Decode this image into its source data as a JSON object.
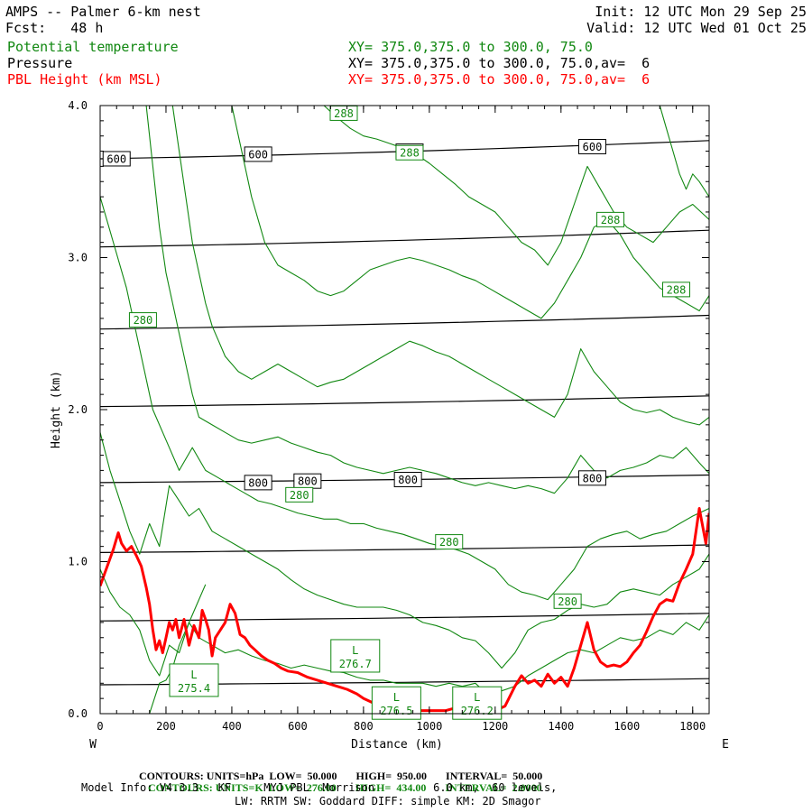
{
  "header": {
    "model_line": "AMPS -- Palmer 6-km nest",
    "fcst_line": "Fcst:   48 h",
    "init_line": "Init: 12 UTC Mon 29 Sep 25",
    "valid_line": "Valid: 12 UTC Wed 01 Oct 25",
    "fields": [
      {
        "name": "Potential temperature",
        "xy": "XY= 375.0,375.0 to 300.0, 75.0",
        "color": "#118811"
      },
      {
        "name": "Pressure",
        "xy": "XY= 375.0,375.0 to 300.0, 75.0,av=  6",
        "color": "#000000"
      },
      {
        "name": "PBL Height (km MSL)",
        "xy": "XY= 375.0,375.0 to 300.0, 75.0,av=  6",
        "color": "#ff0000"
      }
    ]
  },
  "footer": {
    "contours_pressure": {
      "label": "CONTOURS:",
      "units": "UNITS=hPa",
      "low": "LOW=  50.000",
      "high": "HIGH=  950.00",
      "interval": "INTERVAL=  50.000"
    },
    "contours_theta": {
      "label": "CONTOURS:",
      "units": "UNITS=K",
      "low": "LOW=  276.00",
      "high": "HIGH=  434.00",
      "interval": "INTERVAL=  2.0000"
    },
    "model_info": "Model Info: V4.3.3   KF     MYJ PBL  Morrison         6.0 km,  60 levels,",
    "model_info2": "LW: RRTM SW: Goddard DIFF: simple KM: 2D Smagor"
  },
  "chart_data": {
    "type": "line",
    "xlabel": "Distance (km)",
    "ylabel": "Height (km)",
    "xlim": [
      0,
      1850
    ],
    "ylim": [
      0,
      4.0
    ],
    "x_ticks": [
      0,
      200,
      400,
      600,
      800,
      1000,
      1200,
      1400,
      1600,
      1800
    ],
    "y_ticks": [
      "0.0",
      "1.0",
      "2.0",
      "3.0",
      "4.0"
    ],
    "x_end_labels": {
      "left": "W",
      "right": "E"
    },
    "pressure_isobars": [
      {
        "label": "",
        "y_start": 0.19,
        "y_end": 0.23
      },
      {
        "label": "",
        "y_start": 0.61,
        "y_end": 0.66
      },
      {
        "label": "",
        "y_start": 1.06,
        "y_end": 1.11
      },
      {
        "label": "800",
        "y_start": 1.52,
        "y_end": 1.57
      },
      {
        "label": "",
        "y_start": 2.02,
        "y_end": 2.09
      },
      {
        "label": "",
        "y_start": 2.53,
        "y_end": 2.62
      },
      {
        "label": "",
        "y_start": 3.07,
        "y_end": 3.18
      },
      {
        "label": "600",
        "y_start": 3.65,
        "y_end": 3.77
      }
    ],
    "pressure_labels": [
      {
        "text": "600",
        "x": 50,
        "y": 3.65
      },
      {
        "text": "600",
        "x": 480,
        "y": 3.68
      },
      {
        "text": "600",
        "x": 940,
        "y": 3.7
      },
      {
        "text": "600",
        "x": 1495,
        "y": 3.73
      },
      {
        "text": "800",
        "x": 480,
        "y": 1.52
      },
      {
        "text": "800",
        "x": 630,
        "y": 1.53
      },
      {
        "text": "800",
        "x": 935,
        "y": 1.54
      },
      {
        "text": "800",
        "x": 1495,
        "y": 1.55
      }
    ],
    "theta_labels": [
      {
        "text": "288",
        "x": 740,
        "y": 3.95
      },
      {
        "text": "288",
        "x": 940,
        "y": 3.69
      },
      {
        "text": "288",
        "x": 1550,
        "y": 3.25
      },
      {
        "text": "288",
        "x": 1750,
        "y": 2.79
      },
      {
        "text": "280",
        "x": 130,
        "y": 2.59
      },
      {
        "text": "280",
        "x": 605,
        "y": 1.44
      },
      {
        "text": "280",
        "x": 1060,
        "y": 1.13
      },
      {
        "text": "280",
        "x": 1420,
        "y": 0.74
      }
    ],
    "lows": [
      {
        "letter": "L",
        "value": "275.4",
        "x": 285,
        "y": 0.22
      },
      {
        "letter": "L",
        "value": "276.7",
        "x": 775,
        "y": 0.38
      },
      {
        "letter": "L",
        "value": "276.5",
        "x": 900,
        "y": 0.07
      },
      {
        "letter": "L",
        "value": "276.2",
        "x": 1145,
        "y": 0.07
      }
    ],
    "series": [
      {
        "name": "PBL Height (km MSL)",
        "color": "#ff0000",
        "x": [
          0,
          20,
          40,
          55,
          65,
          80,
          95,
          110,
          125,
          140,
          150,
          160,
          170,
          180,
          190,
          200,
          210,
          220,
          230,
          240,
          255,
          270,
          285,
          300,
          310,
          320,
          330,
          340,
          350,
          365,
          380,
          395,
          410,
          425,
          440,
          455,
          470,
          490,
          510,
          530,
          550,
          570,
          600,
          630,
          660,
          690,
          720,
          750,
          780,
          800,
          820,
          840,
          860,
          880,
          900,
          950,
          1000,
          1050,
          1100,
          1150,
          1200,
          1230,
          1260,
          1280,
          1300,
          1320,
          1340,
          1360,
          1380,
          1400,
          1420,
          1440,
          1460,
          1480,
          1500,
          1520,
          1540,
          1560,
          1580,
          1600,
          1620,
          1640,
          1660,
          1680,
          1700,
          1720,
          1740,
          1760,
          1780,
          1800,
          1820,
          1840,
          1850
        ],
        "y": [
          0.84,
          0.96,
          1.08,
          1.19,
          1.12,
          1.07,
          1.1,
          1.04,
          0.97,
          0.83,
          0.72,
          0.55,
          0.42,
          0.48,
          0.4,
          0.5,
          0.6,
          0.55,
          0.62,
          0.5,
          0.62,
          0.45,
          0.58,
          0.5,
          0.68,
          0.62,
          0.55,
          0.38,
          0.5,
          0.55,
          0.6,
          0.72,
          0.66,
          0.52,
          0.5,
          0.45,
          0.42,
          0.38,
          0.35,
          0.33,
          0.3,
          0.28,
          0.27,
          0.24,
          0.22,
          0.2,
          0.18,
          0.16,
          0.13,
          0.1,
          0.08,
          0.06,
          0.05,
          0.04,
          0.03,
          0.02,
          0.02,
          0.02,
          0.05,
          0.03,
          0.02,
          0.05,
          0.18,
          0.25,
          0.2,
          0.22,
          0.18,
          0.26,
          0.2,
          0.24,
          0.18,
          0.3,
          0.45,
          0.6,
          0.42,
          0.34,
          0.31,
          0.32,
          0.31,
          0.34,
          0.4,
          0.45,
          0.54,
          0.64,
          0.72,
          0.75,
          0.74,
          0.86,
          0.95,
          1.05,
          1.35,
          1.12,
          1.32
        ]
      },
      {
        "name": "theta-276",
        "color": "#118811",
        "x": [
          150,
          165,
          180,
          200,
          220,
          240,
          260,
          280,
          300,
          320
        ],
        "y": [
          0.0,
          0.1,
          0.2,
          0.22,
          0.3,
          0.45,
          0.55,
          0.65,
          0.75,
          0.85
        ]
      },
      {
        "name": "theta-278-a",
        "color": "#118811",
        "x": [
          0,
          30,
          60,
          90,
          120,
          150,
          180,
          210,
          240,
          270,
          300,
          340,
          380,
          420,
          460,
          500,
          540,
          580,
          620,
          660,
          700,
          740,
          780,
          820,
          860,
          900,
          940,
          980,
          1020,
          1060,
          1100,
          1140,
          1180,
          1220,
          1260,
          1300,
          1340,
          1380,
          1420,
          1460,
          1500,
          1540,
          1580,
          1620,
          1660,
          1700,
          1740,
          1780,
          1820,
          1850
        ],
        "y": [
          0.95,
          0.8,
          0.7,
          0.65,
          0.55,
          0.35,
          0.25,
          0.45,
          0.4,
          0.6,
          0.5,
          0.45,
          0.4,
          0.42,
          0.38,
          0.35,
          0.33,
          0.3,
          0.32,
          0.3,
          0.28,
          0.27,
          0.24,
          0.22,
          0.22,
          0.2,
          0.2,
          0.2,
          0.18,
          0.2,
          0.18,
          0.2,
          0.12,
          0.15,
          0.18,
          0.25,
          0.3,
          0.35,
          0.4,
          0.42,
          0.4,
          0.45,
          0.5,
          0.48,
          0.5,
          0.55,
          0.52,
          0.6,
          0.55,
          0.65
        ]
      },
      {
        "name": "theta-280",
        "color": "#118811",
        "x": [
          0,
          30,
          60,
          90,
          120,
          150,
          180,
          210,
          240,
          270,
          300,
          340,
          380,
          420,
          460,
          500,
          540,
          580,
          620,
          660,
          700,
          740,
          780,
          820,
          860,
          900,
          940,
          980,
          1020,
          1060,
          1100,
          1140,
          1180,
          1220,
          1260,
          1300,
          1340,
          1380,
          1420,
          1460,
          1500,
          1540,
          1580,
          1620,
          1660,
          1700,
          1740,
          1780,
          1820,
          1850
        ],
        "y": [
          1.85,
          1.6,
          1.4,
          1.2,
          1.05,
          1.25,
          1.1,
          1.5,
          1.4,
          1.3,
          1.35,
          1.2,
          1.15,
          1.1,
          1.05,
          1.0,
          0.95,
          0.88,
          0.82,
          0.78,
          0.75,
          0.72,
          0.7,
          0.7,
          0.7,
          0.68,
          0.65,
          0.6,
          0.58,
          0.55,
          0.5,
          0.48,
          0.4,
          0.3,
          0.4,
          0.55,
          0.6,
          0.62,
          0.68,
          0.72,
          0.7,
          0.72,
          0.8,
          0.82,
          0.8,
          0.78,
          0.85,
          0.9,
          0.95,
          1.05
        ]
      },
      {
        "name": "theta-282",
        "color": "#118811",
        "x": [
          0,
          40,
          80,
          120,
          160,
          200,
          240,
          280,
          320,
          360,
          400,
          440,
          480,
          520,
          560,
          600,
          640,
          680,
          720,
          760,
          800,
          840,
          880,
          920,
          960,
          1000,
          1040,
          1080,
          1120,
          1160,
          1200,
          1240,
          1280,
          1320,
          1360,
          1400,
          1440,
          1480,
          1520,
          1560,
          1600,
          1640,
          1680,
          1720,
          1760,
          1800,
          1850
        ],
        "y": [
          3.4,
          3.1,
          2.8,
          2.4,
          2.0,
          1.8,
          1.6,
          1.75,
          1.6,
          1.55,
          1.5,
          1.45,
          1.4,
          1.38,
          1.35,
          1.32,
          1.3,
          1.28,
          1.28,
          1.25,
          1.25,
          1.22,
          1.2,
          1.18,
          1.15,
          1.12,
          1.1,
          1.08,
          1.05,
          1.0,
          0.95,
          0.85,
          0.8,
          0.78,
          0.75,
          0.85,
          0.95,
          1.1,
          1.15,
          1.18,
          1.2,
          1.15,
          1.18,
          1.2,
          1.25,
          1.3,
          1.35
        ]
      },
      {
        "name": "theta-284",
        "color": "#118811",
        "x": [
          140,
          160,
          180,
          200,
          220,
          240,
          260,
          280,
          300,
          340,
          380,
          420,
          460,
          500,
          540,
          580,
          620,
          660,
          700,
          740,
          780,
          820,
          860,
          900,
          940,
          980,
          1020,
          1060,
          1100,
          1140,
          1180,
          1220,
          1260,
          1300,
          1340,
          1380,
          1420,
          1460,
          1500,
          1540,
          1580,
          1620,
          1660,
          1700,
          1740,
          1780,
          1820,
          1850
        ],
        "y": [
          4.0,
          3.6,
          3.2,
          2.9,
          2.7,
          2.5,
          2.3,
          2.1,
          1.95,
          1.9,
          1.85,
          1.8,
          1.78,
          1.8,
          1.82,
          1.78,
          1.75,
          1.72,
          1.7,
          1.65,
          1.62,
          1.6,
          1.58,
          1.6,
          1.62,
          1.6,
          1.58,
          1.55,
          1.52,
          1.5,
          1.52,
          1.5,
          1.48,
          1.5,
          1.48,
          1.45,
          1.55,
          1.7,
          1.6,
          1.55,
          1.6,
          1.62,
          1.65,
          1.7,
          1.68,
          1.75,
          1.65,
          1.58
        ]
      },
      {
        "name": "theta-286",
        "color": "#118811",
        "x": [
          220,
          240,
          260,
          280,
          300,
          320,
          340,
          360,
          380,
          420,
          460,
          500,
          540,
          580,
          620,
          660,
          700,
          740,
          780,
          820,
          860,
          900,
          940,
          980,
          1020,
          1060,
          1100,
          1140,
          1180,
          1220,
          1260,
          1300,
          1340,
          1380,
          1420,
          1460,
          1500,
          1540,
          1580,
          1620,
          1660,
          1700,
          1740,
          1780,
          1820,
          1850
        ],
        "y": [
          4.0,
          3.7,
          3.4,
          3.1,
          2.9,
          2.7,
          2.55,
          2.45,
          2.35,
          2.25,
          2.2,
          2.25,
          2.3,
          2.25,
          2.2,
          2.15,
          2.18,
          2.2,
          2.25,
          2.3,
          2.35,
          2.4,
          2.45,
          2.42,
          2.38,
          2.35,
          2.3,
          2.25,
          2.2,
          2.15,
          2.1,
          2.05,
          2.0,
          1.95,
          2.1,
          2.4,
          2.25,
          2.15,
          2.05,
          2.0,
          1.98,
          2.0,
          1.95,
          1.92,
          1.9,
          1.95
        ]
      },
      {
        "name": "theta-288",
        "color": "#118811",
        "x": [
          400,
          430,
          460,
          500,
          540,
          580,
          620,
          660,
          700,
          740,
          780,
          820,
          860,
          900,
          940,
          980,
          1020,
          1060,
          1100,
          1140,
          1180,
          1220,
          1260,
          1300,
          1340,
          1380,
          1420,
          1460,
          1500,
          1540,
          1580,
          1620,
          1660,
          1700,
          1740,
          1780,
          1820,
          1850
        ],
        "y": [
          4.0,
          3.7,
          3.4,
          3.1,
          2.95,
          2.9,
          2.85,
          2.78,
          2.75,
          2.78,
          2.85,
          2.92,
          2.95,
          2.98,
          3.0,
          2.98,
          2.95,
          2.92,
          2.88,
          2.85,
          2.8,
          2.75,
          2.7,
          2.65,
          2.6,
          2.7,
          2.85,
          3.0,
          3.2,
          3.25,
          3.15,
          3.0,
          2.9,
          2.8,
          2.75,
          2.7,
          2.65,
          2.75
        ]
      },
      {
        "name": "theta-290",
        "color": "#118811",
        "x": [
          680,
          720,
          760,
          800,
          840,
          880,
          920,
          960,
          1000,
          1040,
          1080,
          1120,
          1160,
          1200,
          1240,
          1280,
          1320,
          1360,
          1400,
          1440,
          1480,
          1520,
          1560,
          1600,
          1640,
          1680,
          1720,
          1760,
          1800,
          1850
        ],
        "y": [
          4.0,
          3.92,
          3.85,
          3.8,
          3.78,
          3.75,
          3.72,
          3.68,
          3.62,
          3.55,
          3.48,
          3.4,
          3.35,
          3.3,
          3.2,
          3.1,
          3.05,
          2.95,
          3.1,
          3.35,
          3.6,
          3.45,
          3.3,
          3.2,
          3.15,
          3.1,
          3.2,
          3.3,
          3.35,
          3.25
        ]
      },
      {
        "name": "theta-292",
        "color": "#118811",
        "x": [
          1700,
          1720,
          1740,
          1760,
          1780,
          1800,
          1820,
          1850
        ],
        "y": [
          4.0,
          3.85,
          3.7,
          3.55,
          3.45,
          3.55,
          3.5,
          3.4
        ]
      }
    ]
  }
}
